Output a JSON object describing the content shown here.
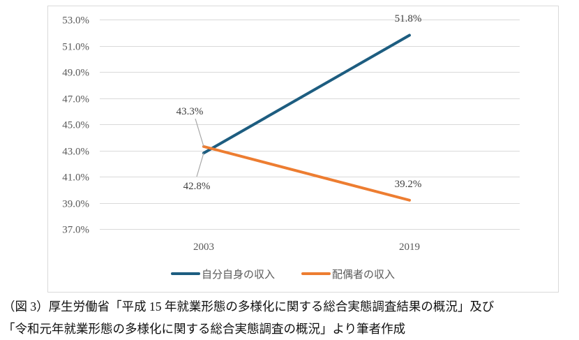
{
  "chart_data": {
    "type": "line",
    "title": "",
    "xlabel": "",
    "ylabel": "",
    "categories": [
      "2003",
      "2019"
    ],
    "ylim": [
      37.0,
      53.0
    ],
    "ytick_step": 2.0,
    "yticks": [
      "37.0%",
      "39.0%",
      "41.0%",
      "43.0%",
      "45.0%",
      "47.0%",
      "49.0%",
      "51.0%",
      "53.0%"
    ],
    "grid": true,
    "legend_placement": "bottom",
    "series": [
      {
        "name": "自分自身の収入",
        "values": [
          42.8,
          51.8
        ],
        "labels": [
          "42.8%",
          "51.8%"
        ],
        "color": "#1d5d80"
      },
      {
        "name": "配偶者の収入",
        "values": [
          43.3,
          39.2
        ],
        "labels": [
          "43.3%",
          "39.2%"
        ],
        "color": "#ed7d31"
      }
    ]
  },
  "caption": {
    "line1": "（図 3）厚生労働省「平成 15 年就業形態の多様化に関する総合実態調査結果の概況」及び",
    "line2": "「令和元年就業形態の多様化に関する総合実態調査の概況」より筆者作成"
  }
}
